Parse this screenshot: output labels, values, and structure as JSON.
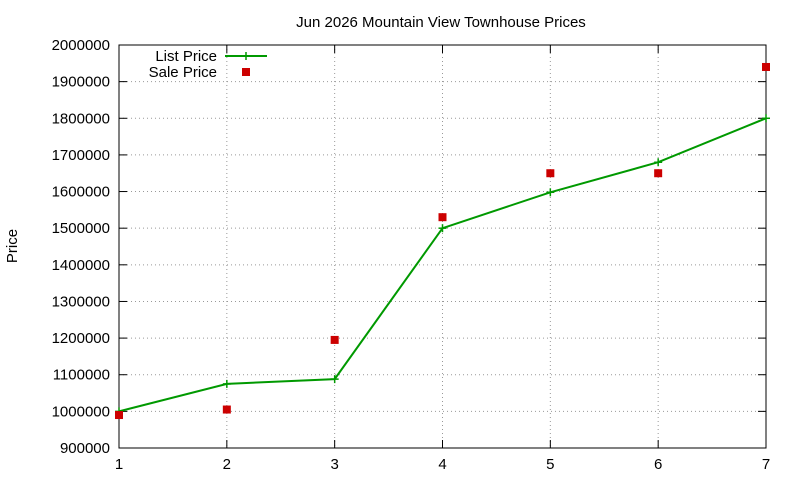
{
  "chart_data": {
    "type": "line",
    "title": "Jun 2026 Mountain View Townhouse Prices",
    "xlabel": "",
    "ylabel": "Price",
    "xlim": [
      1,
      7
    ],
    "ylim": [
      900000,
      2000000
    ],
    "x_ticks": [
      1,
      2,
      3,
      4,
      5,
      6,
      7
    ],
    "y_ticks": [
      900000,
      1000000,
      1100000,
      1200000,
      1300000,
      1400000,
      1500000,
      1600000,
      1700000,
      1800000,
      1900000,
      2000000
    ],
    "grid": true,
    "legend_position": "top-left",
    "series": [
      {
        "name": "List Price",
        "style": "line-with-plus-markers",
        "color": "#009900",
        "x": [
          1,
          2,
          3,
          4,
          5,
          6,
          7
        ],
        "y": [
          1000000,
          1075000,
          1088000,
          1500000,
          1598000,
          1680000,
          1800000
        ]
      },
      {
        "name": "Sale Price",
        "style": "square-markers",
        "color": "#cc0000",
        "x": [
          1,
          2,
          3,
          4,
          5,
          6,
          7
        ],
        "y": [
          990000,
          1005000,
          1195000,
          1530000,
          1650000,
          1650000,
          1940000
        ]
      }
    ]
  }
}
